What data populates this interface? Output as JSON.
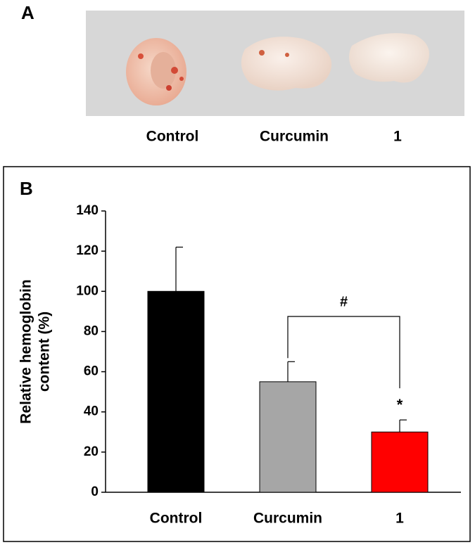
{
  "panel_a": {
    "label": "A",
    "labels": [
      "Control",
      "Curcumin",
      "1"
    ]
  },
  "chart_data": {
    "type": "bar",
    "panel_label": "B",
    "ylabel": [
      "Relative hemoglobin",
      "content (%)"
    ],
    "categories": [
      "Control",
      "Curcumin",
      "1"
    ],
    "values": [
      100,
      55,
      30
    ],
    "errors": [
      22,
      10,
      6
    ],
    "colors": [
      "#000000",
      "#a6a6a6",
      "#ff0000"
    ],
    "ylim": [
      0,
      140
    ],
    "yticks": [
      0,
      20,
      40,
      60,
      80,
      100,
      120,
      140
    ],
    "annotations": [
      "#",
      "*"
    ]
  }
}
